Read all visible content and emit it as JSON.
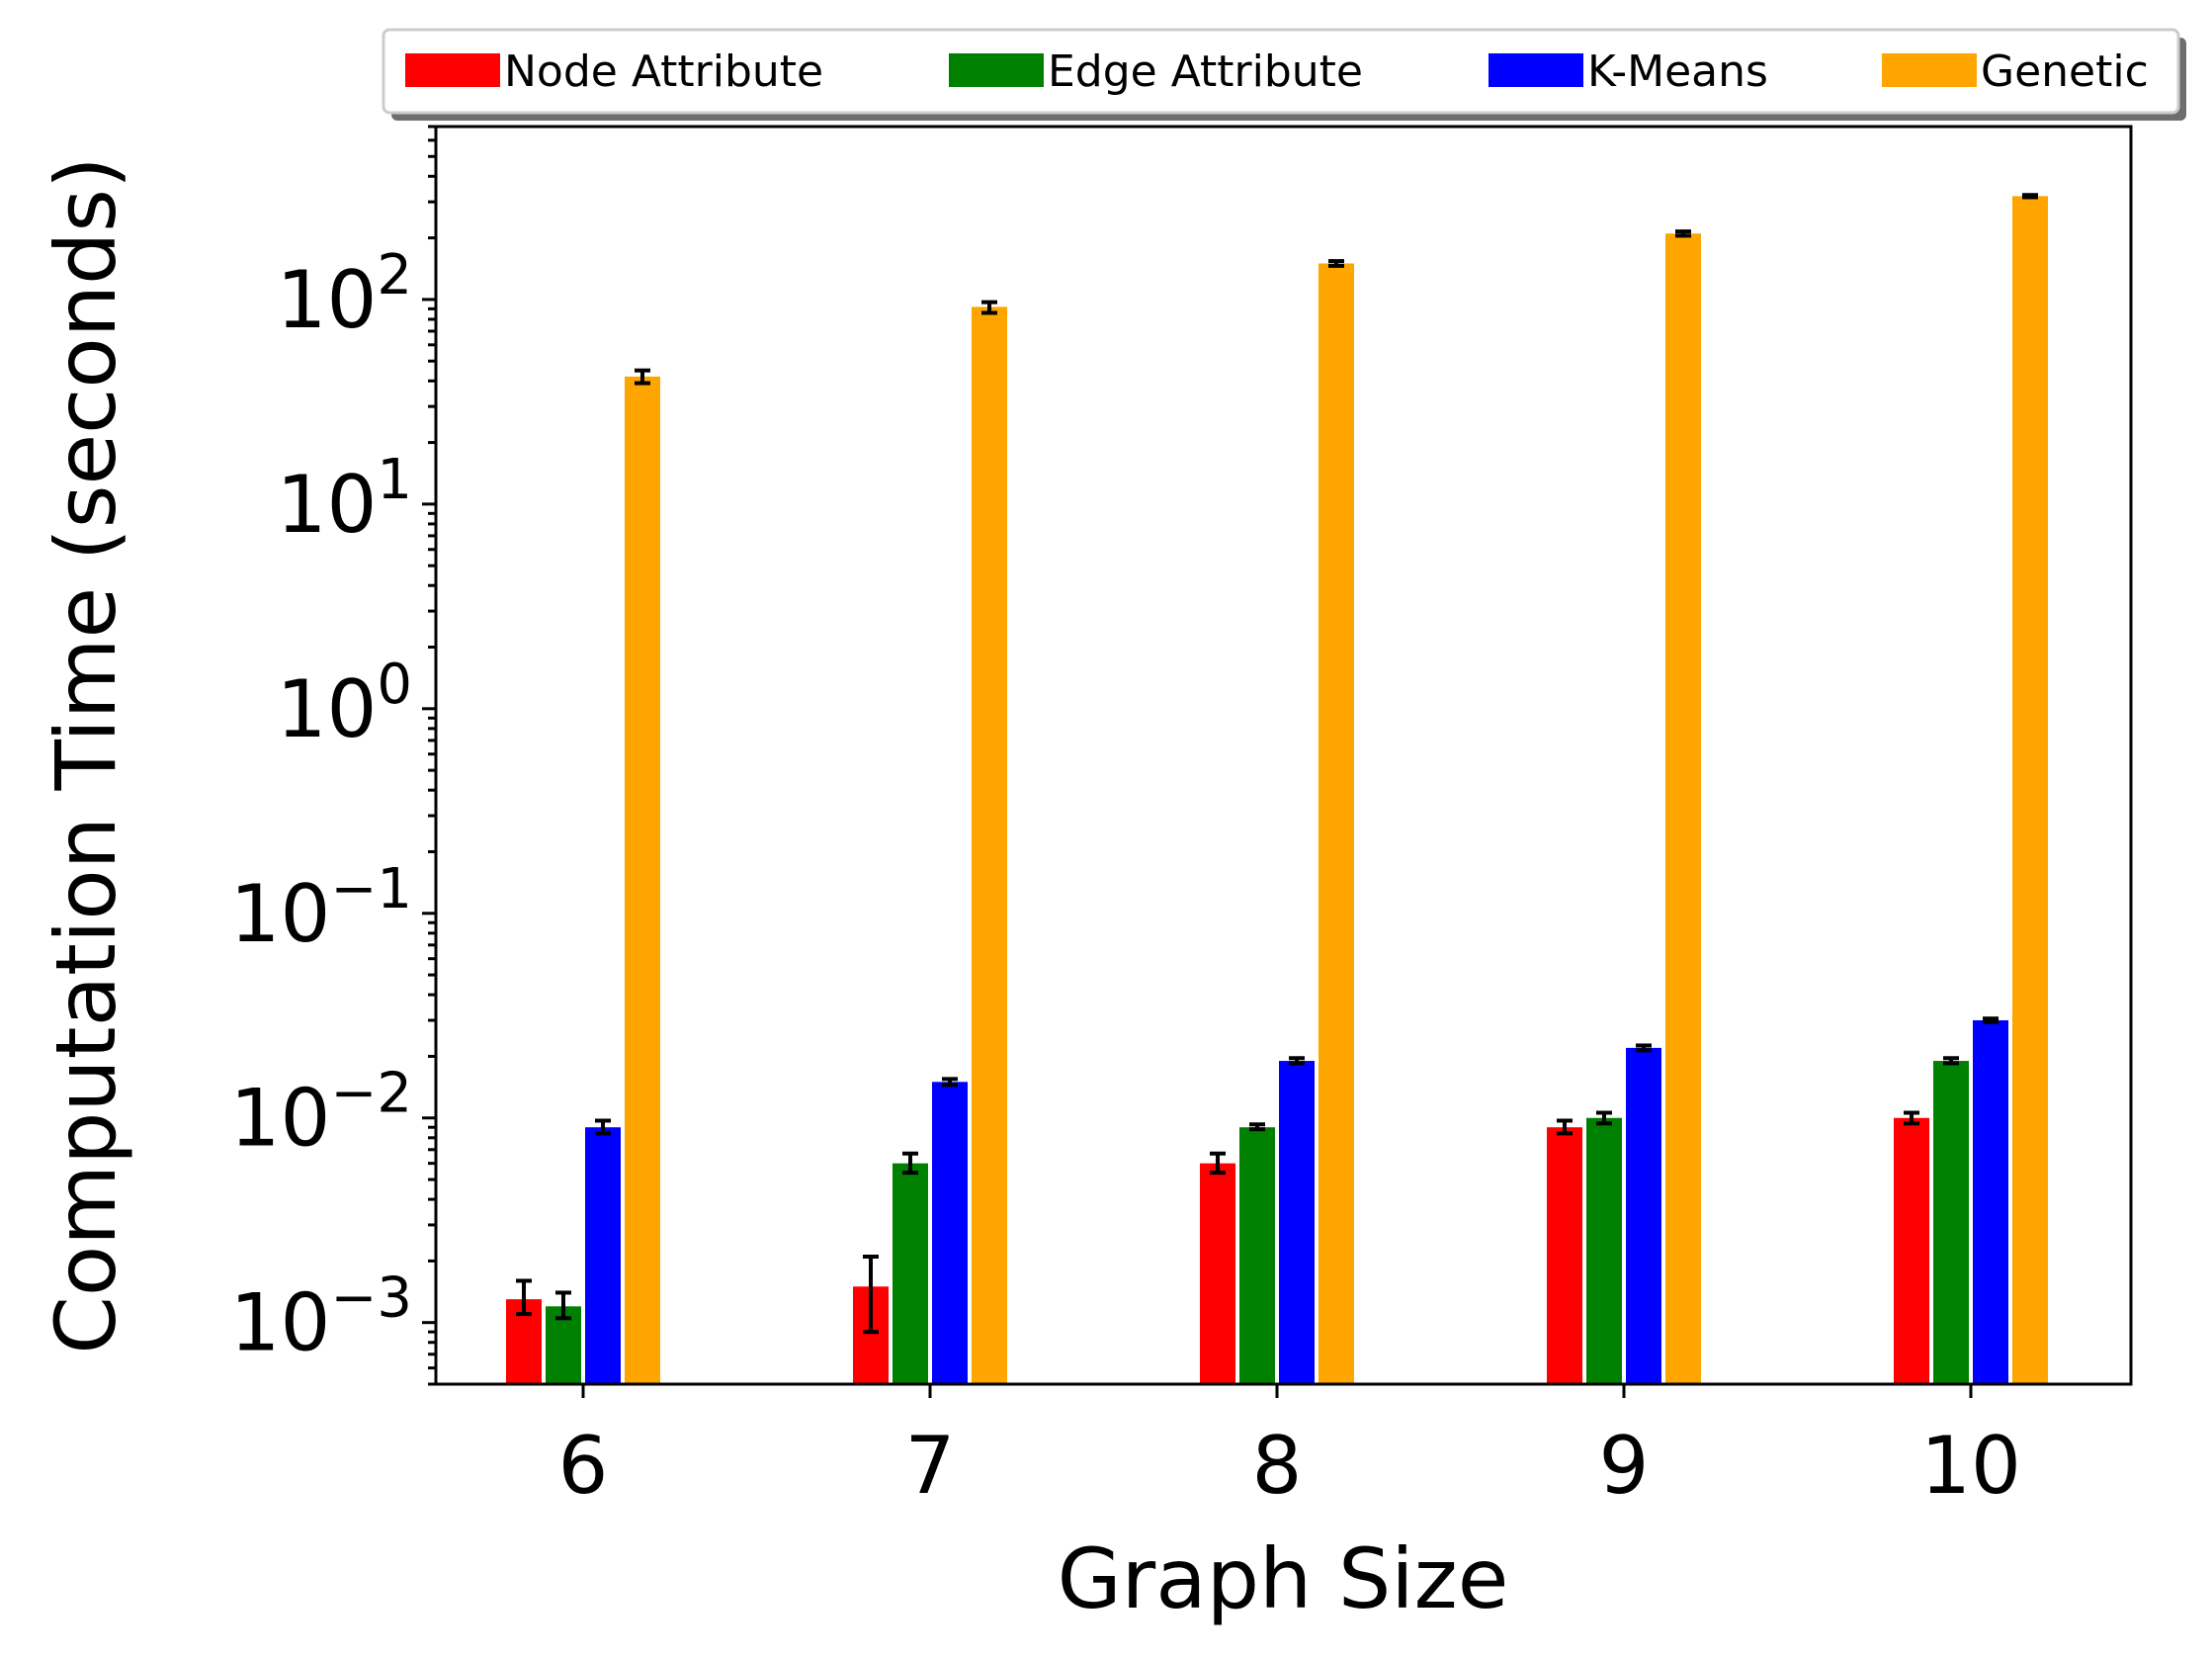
{
  "chart_data": {
    "type": "bar",
    "title": "",
    "xlabel": "Graph Size",
    "ylabel": "Computation Time (seconds)",
    "yscale": "log",
    "ylim": [
      0.0005,
      700
    ],
    "grid": false,
    "legend_position": "top",
    "categories": [
      "6",
      "7",
      "8",
      "9",
      "10"
    ],
    "yticks": [
      {
        "value": 0.001,
        "base": "10",
        "exp": "−3"
      },
      {
        "value": 0.01,
        "base": "10",
        "exp": "−2"
      },
      {
        "value": 0.1,
        "base": "10",
        "exp": "−1"
      },
      {
        "value": 1,
        "base": "10",
        "exp": "0"
      },
      {
        "value": 10,
        "base": "10",
        "exp": "1"
      },
      {
        "value": 100,
        "base": "10",
        "exp": "2"
      }
    ],
    "series": [
      {
        "name": "Node Attribute",
        "color": "#ff0000",
        "values": [
          0.0013,
          0.0015,
          0.006,
          0.009,
          0.01
        ],
        "err_low": [
          0.0011,
          0.0009,
          0.0054,
          0.0084,
          0.0094
        ],
        "err_high": [
          0.0016,
          0.0021,
          0.0067,
          0.0097,
          0.0106
        ]
      },
      {
        "name": "Edge Attribute",
        "color": "#008000",
        "values": [
          0.0012,
          0.006,
          0.009,
          0.01,
          0.019
        ],
        "err_low": [
          0.00105,
          0.0054,
          0.0088,
          0.0094,
          0.0185
        ],
        "err_high": [
          0.0014,
          0.0067,
          0.0093,
          0.0106,
          0.0196
        ]
      },
      {
        "name": "K-Means",
        "color": "#0000ff",
        "values": [
          0.009,
          0.015,
          0.019,
          0.022,
          0.03
        ],
        "err_low": [
          0.0084,
          0.0145,
          0.0185,
          0.0214,
          0.0294
        ],
        "err_high": [
          0.0097,
          0.0155,
          0.0196,
          0.0226,
          0.0306
        ]
      },
      {
        "name": "Genetic",
        "color": "#ffa500",
        "values": [
          42,
          92,
          150,
          210,
          320
        ],
        "err_low": [
          39,
          86,
          146,
          205,
          316
        ],
        "err_high": [
          45,
          97,
          154,
          215,
          324
        ]
      }
    ]
  }
}
